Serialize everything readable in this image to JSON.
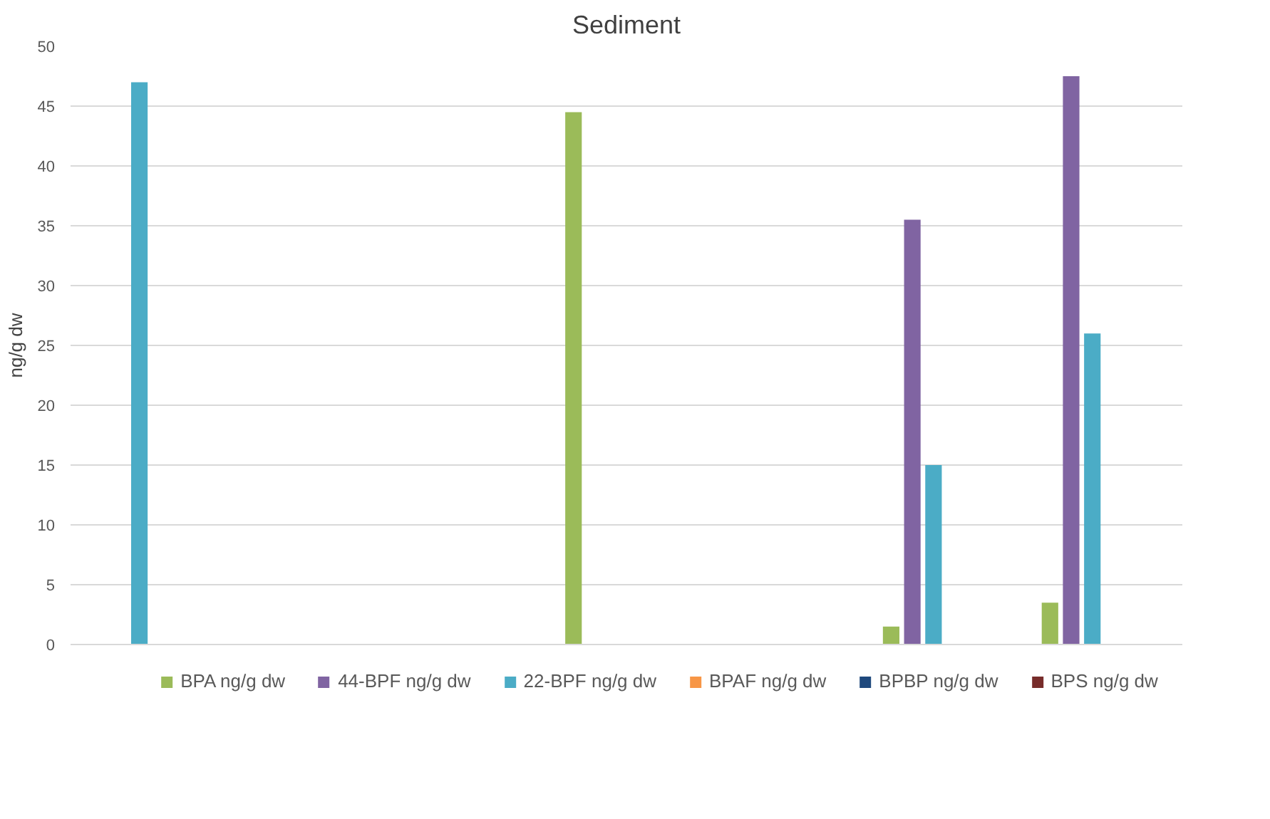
{
  "chart_data": {
    "type": "bar",
    "title": "Sediment",
    "ylabel": "ng/g dw",
    "categories": [
      null,
      null,
      null,
      null,
      null,
      null,
      null
    ],
    "series": [
      {
        "name": "BPA ng/g dw",
        "color": "#9bbb59",
        "values": [
          0,
          0,
          0,
          44.5,
          0,
          1.5,
          3.5
        ]
      },
      {
        "name": "44-BPF ng/g dw",
        "color": "#8064a2",
        "values": [
          0,
          0,
          0,
          0,
          0,
          35.5,
          47.5
        ]
      },
      {
        "name": "22-BPF ng/g dw",
        "color": "#4bacc6",
        "values": [
          47,
          0,
          0,
          0,
          0,
          15,
          26
        ]
      },
      {
        "name": "BPAF ng/g dw",
        "color": "#f79646",
        "values": [
          0,
          0,
          0,
          0,
          0,
          0,
          0
        ]
      },
      {
        "name": "BPBP ng/g dw",
        "color": "#1f497d",
        "values": [
          0,
          0,
          0,
          0,
          0,
          0,
          0
        ]
      },
      {
        "name": "BPS ng/g dw",
        "color": "#772c2a",
        "values": [
          0,
          0,
          0,
          0,
          0,
          0,
          0
        ]
      }
    ],
    "ylim": [
      0,
      50
    ],
    "yticks": [
      0,
      5,
      10,
      15,
      20,
      25,
      30,
      35,
      40,
      45,
      50
    ],
    "grid": "y",
    "legend": "bottom"
  }
}
